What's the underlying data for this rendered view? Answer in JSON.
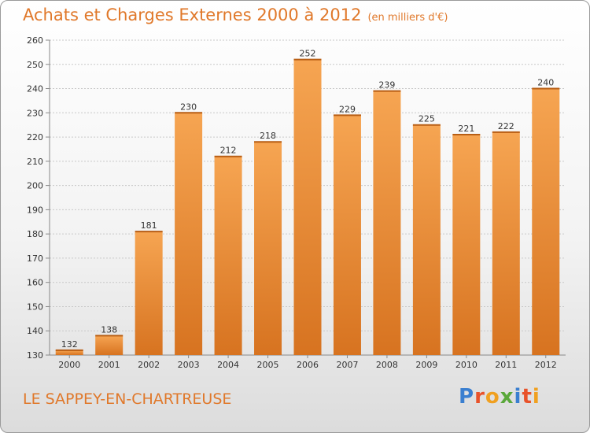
{
  "header": {
    "title": "Achats et Charges Externes 2000 à 2012",
    "unit": "(en milliers d'€)"
  },
  "footer": {
    "commune": "LE SAPPEY-EN-CHARTREUSE",
    "brand": "Proxiti"
  },
  "colors": {
    "bar_top": "#f6a552",
    "bar_bottom": "#d77320",
    "accent": "#e0782a",
    "brand_letters": [
      "#3a7fd0",
      "#e8522a",
      "#f0a020",
      "#5aa83a",
      "#3a7fd0",
      "#e8522a",
      "#f0a020"
    ]
  },
  "chart_data": {
    "type": "bar",
    "categories": [
      "2000",
      "2001",
      "2002",
      "2003",
      "2004",
      "2005",
      "2006",
      "2007",
      "2008",
      "2009",
      "2010",
      "2011",
      "2012"
    ],
    "values": [
      132,
      138,
      181,
      230,
      212,
      218,
      252,
      229,
      239,
      225,
      221,
      222,
      240
    ],
    "title": "Achats et Charges Externes 2000 à 2012",
    "ylim": [
      130,
      260
    ],
    "yticks": [
      130,
      140,
      150,
      160,
      170,
      180,
      190,
      200,
      210,
      220,
      230,
      240,
      250,
      260
    ],
    "grid": true,
    "data_labels": true
  }
}
